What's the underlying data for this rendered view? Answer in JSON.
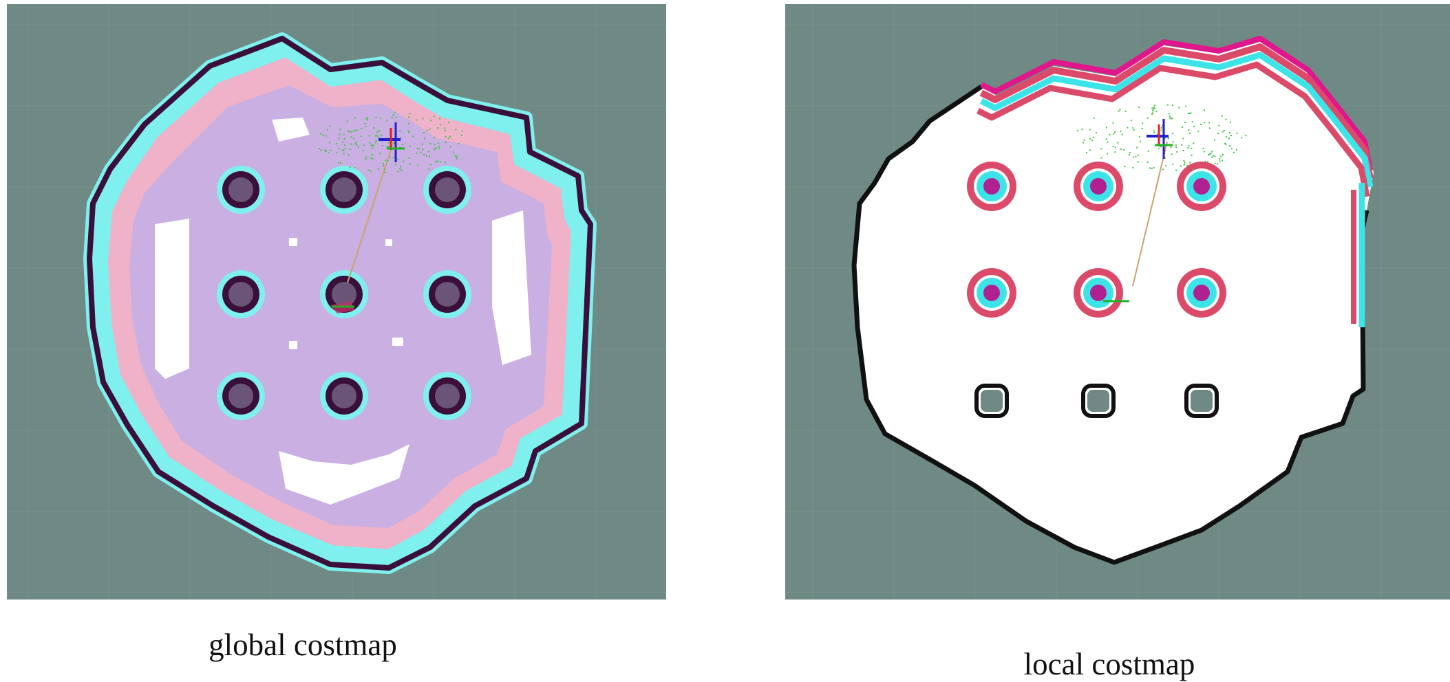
{
  "captions": {
    "global": "global costmap",
    "local": "local costmap"
  },
  "colors": {
    "background_unknown": "#6f8a84",
    "grid_line": "#7f9893",
    "lethal_wall": "#3a0f3a",
    "inscribed_cyan": "#7ff0ee",
    "inflation_pink": "#f0b2c8",
    "inflation_lavender": "#c2aee6",
    "free_space": "#ffffff",
    "local_wall": "#111111",
    "local_inflation_red": "#dc4a6a",
    "local_inflation_cyan": "#3ce4e8",
    "local_inflation_magenta": "#e0168c",
    "particles": "#44c244",
    "plan_path": "#c9a36a",
    "axis_x": "#e02020",
    "axis_y": "#20b020",
    "axis_z": "#2020d0"
  },
  "maps": {
    "global": {
      "pillar_rows": 3,
      "pillar_cols": 3
    },
    "local": {
      "pillar_rows": 3,
      "pillar_cols": 3
    }
  }
}
